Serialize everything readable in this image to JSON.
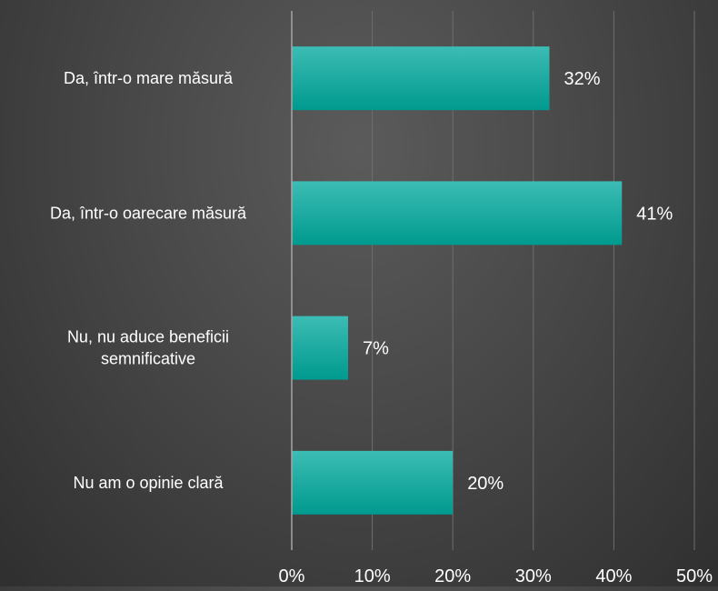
{
  "colors": {
    "bar_top": "#3cbcb4",
    "bar_bottom": "#009a8e",
    "gridline": "#6e6e6e",
    "axis": "#a6a6a6",
    "text": "#ffffff"
  },
  "chart_data": {
    "type": "bar",
    "orientation": "horizontal",
    "categories": [
      "Da, într-o mare măsură",
      "Da, într-o oarecare măsură",
      "Nu, nu aduce beneficii semnificative",
      "Nu am o opinie clară"
    ],
    "category_label_lines": [
      [
        "Da, într-o mare măsură"
      ],
      [
        "Da, într-o oarecare măsură"
      ],
      [
        "Nu, nu aduce beneficii",
        "semnificative"
      ],
      [
        "Nu am o opinie clară"
      ]
    ],
    "values": [
      32,
      41,
      7,
      20
    ],
    "data_labels": [
      "32%",
      "41%",
      "7%",
      "20%"
    ],
    "xlim": [
      0,
      50
    ],
    "x_ticks": [
      0,
      10,
      20,
      30,
      40,
      50
    ],
    "x_tick_labels": [
      "0%",
      "10%",
      "20%",
      "30%",
      "40%",
      "50%"
    ],
    "grid": true,
    "legend": "none"
  }
}
